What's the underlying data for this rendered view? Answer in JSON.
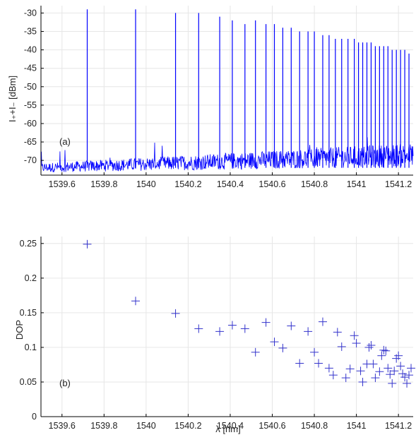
{
  "chart_data": [
    {
      "type": "line",
      "panel_label": "(a)",
      "ylabel": "I₊+I₋ [dBm]",
      "xlabel": "",
      "xlim": [
        1539.5,
        1541.27
      ],
      "ylim": [
        -74,
        -28
      ],
      "x_ticks": [
        "1539.6",
        "1539.8",
        "1540",
        "1540.2",
        "1540.4",
        "1540.6",
        "1540.8",
        "1541",
        "1541.2"
      ],
      "y_ticks": [
        "-30",
        "-35",
        "-40",
        "-45",
        "-50",
        "-55",
        "-60",
        "-65",
        "-70"
      ],
      "grid": true,
      "series": [
        {
          "color": "#0000ff",
          "noise_floor_dBm": -72,
          "peaks": [
            {
              "x": 1539.72,
              "y": -29
            },
            {
              "x": 1539.95,
              "y": -29
            },
            {
              "x": 1540.14,
              "y": -30
            },
            {
              "x": 1540.25,
              "y": -30
            },
            {
              "x": 1540.35,
              "y": -31
            },
            {
              "x": 1540.41,
              "y": -32
            },
            {
              "x": 1540.47,
              "y": -33
            },
            {
              "x": 1540.52,
              "y": -32
            },
            {
              "x": 1540.57,
              "y": -33
            },
            {
              "x": 1540.61,
              "y": -33
            },
            {
              "x": 1540.65,
              "y": -34
            },
            {
              "x": 1540.69,
              "y": -34
            },
            {
              "x": 1540.73,
              "y": -35
            },
            {
              "x": 1540.77,
              "y": -35
            },
            {
              "x": 1540.8,
              "y": -35
            },
            {
              "x": 1540.84,
              "y": -36
            },
            {
              "x": 1540.87,
              "y": -36
            },
            {
              "x": 1540.9,
              "y": -37
            },
            {
              "x": 1540.93,
              "y": -37
            },
            {
              "x": 1540.96,
              "y": -37
            },
            {
              "x": 1540.99,
              "y": -37
            },
            {
              "x": 1541.01,
              "y": -38
            },
            {
              "x": 1541.03,
              "y": -38
            },
            {
              "x": 1541.05,
              "y": -38
            },
            {
              "x": 1541.07,
              "y": -38
            },
            {
              "x": 1541.09,
              "y": -39
            },
            {
              "x": 1541.11,
              "y": -39
            },
            {
              "x": 1541.13,
              "y": -39
            },
            {
              "x": 1541.15,
              "y": -39
            },
            {
              "x": 1541.17,
              "y": -40
            },
            {
              "x": 1541.19,
              "y": -40
            },
            {
              "x": 1541.21,
              "y": -40
            },
            {
              "x": 1541.23,
              "y": -40
            },
            {
              "x": 1541.25,
              "y": -41
            }
          ]
        }
      ]
    },
    {
      "type": "scatter",
      "panel_label": "(b)",
      "ylabel": "DOP",
      "xlabel": "λ [nm]",
      "xlim": [
        1539.5,
        1541.27
      ],
      "ylim": [
        0,
        0.26
      ],
      "x_ticks": [
        "1539.6",
        "1539.8",
        "1540",
        "1540.2",
        "1540.4",
        "1540.6",
        "1540.8",
        "1541",
        "1541.2"
      ],
      "y_ticks": [
        "0.25",
        "0.2",
        "0.15",
        "0.1",
        "0.05",
        "0"
      ],
      "grid": true,
      "marker": "+",
      "series": [
        {
          "color": "#3333cc",
          "points": [
            [
              1539.72,
              0.249
            ],
            [
              1539.95,
              0.167
            ],
            [
              1540.14,
              0.149
            ],
            [
              1540.25,
              0.127
            ],
            [
              1540.35,
              0.123
            ],
            [
              1540.41,
              0.132
            ],
            [
              1540.47,
              0.127
            ],
            [
              1540.52,
              0.093
            ],
            [
              1540.57,
              0.136
            ],
            [
              1540.61,
              0.108
            ],
            [
              1540.65,
              0.099
            ],
            [
              1540.69,
              0.131
            ],
            [
              1540.73,
              0.077
            ],
            [
              1540.77,
              0.123
            ],
            [
              1540.8,
              0.093
            ],
            [
              1540.82,
              0.077
            ],
            [
              1540.84,
              0.137
            ],
            [
              1540.87,
              0.07
            ],
            [
              1540.89,
              0.06
            ],
            [
              1540.91,
              0.122
            ],
            [
              1540.93,
              0.101
            ],
            [
              1540.95,
              0.056
            ],
            [
              1540.97,
              0.069
            ],
            [
              1540.99,
              0.117
            ],
            [
              1541.0,
              0.106
            ],
            [
              1541.02,
              0.066
            ],
            [
              1541.03,
              0.05
            ],
            [
              1541.05,
              0.076
            ],
            [
              1541.06,
              0.1
            ],
            [
              1541.07,
              0.103
            ],
            [
              1541.08,
              0.076
            ],
            [
              1541.09,
              0.056
            ],
            [
              1541.11,
              0.065
            ],
            [
              1541.12,
              0.088
            ],
            [
              1541.13,
              0.096
            ],
            [
              1541.14,
              0.095
            ],
            [
              1541.15,
              0.07
            ],
            [
              1541.16,
              0.061
            ],
            [
              1541.17,
              0.048
            ],
            [
              1541.18,
              0.066
            ],
            [
              1541.19,
              0.084
            ],
            [
              1541.2,
              0.088
            ],
            [
              1541.21,
              0.073
            ],
            [
              1541.22,
              0.062
            ],
            [
              1541.23,
              0.057
            ],
            [
              1541.24,
              0.048
            ],
            [
              1541.25,
              0.06
            ],
            [
              1541.26,
              0.07
            ]
          ]
        }
      ]
    }
  ]
}
